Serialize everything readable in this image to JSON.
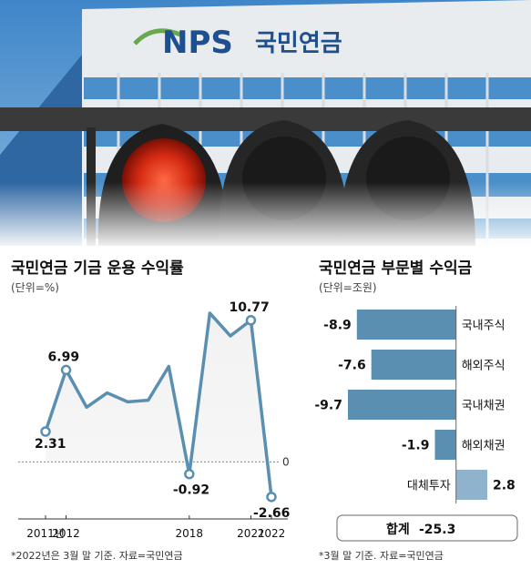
{
  "photo": {
    "sign_logo": "NPS",
    "sign_text": "국민연금"
  },
  "chart_data": [
    {
      "type": "line",
      "title": "국민연금 기금 운용 수익률",
      "unit_label": "(단위=%)",
      "x": [
        2011,
        2012,
        2013,
        2014,
        2015,
        2016,
        2017,
        2018,
        2019,
        2020,
        2021,
        2022
      ],
      "values": [
        2.31,
        6.99,
        4.16,
        5.25,
        4.57,
        4.69,
        7.26,
        -0.92,
        11.31,
        9.58,
        10.77,
        -2.66
      ],
      "data_labels": [
        {
          "index": 0,
          "text": "2.31"
        },
        {
          "index": 1,
          "text": "6.99"
        },
        {
          "index": 7,
          "text": "-0.92"
        },
        {
          "index": 10,
          "text": "10.77"
        },
        {
          "index": 11,
          "text": "-2.66"
        }
      ],
      "x_tick_labels": [
        {
          "x": 2011,
          "text": "2011년"
        },
        {
          "x": 2012,
          "text": "2012"
        },
        {
          "x": 2018,
          "text": "2018"
        },
        {
          "x": 2021,
          "text": "2021"
        },
        {
          "x": 2022,
          "text": "2022"
        }
      ],
      "zero_label": "0",
      "ylim": [
        -3.5,
        12
      ],
      "footnote": "*2022년은 3월 말 기준. 자료=국민연금",
      "colors": {
        "line": "#5b8fb2",
        "marker_fill": "#ffffff"
      }
    },
    {
      "type": "bar",
      "orientation": "horizontal",
      "title": "국민연금 부문별 수익금",
      "unit_label": "(단위=조원)",
      "categories": [
        "국내주식",
        "해외주식",
        "국내채권",
        "해외채권",
        "대체투자"
      ],
      "values": [
        -8.9,
        -7.6,
        -9.7,
        -1.9,
        2.8
      ],
      "value_labels": [
        "-8.9",
        "-7.6",
        "-9.7",
        "-1.9",
        "2.8"
      ],
      "xlim": [
        -9.7,
        2.8
      ],
      "total": {
        "label": "합계",
        "value": "-25.3"
      },
      "footnote": "*3월 말 기준. 자료=국민연금",
      "colors": {
        "negative": "#5b8fb2",
        "positive": "#8fb3cc"
      }
    }
  ]
}
